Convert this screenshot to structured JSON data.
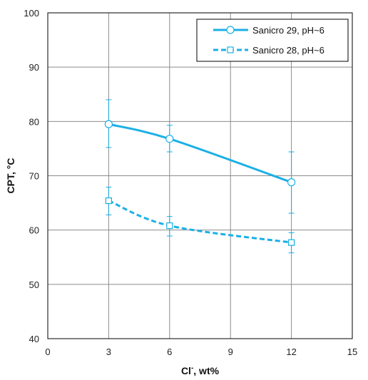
{
  "chart_data": {
    "type": "line",
    "title": "",
    "xlabel": "Cl⁻, wt%",
    "xlabel_main": "Cl",
    "xlabel_sup": "-",
    "xlabel_rest": ", wt%",
    "ylabel": "CPT, °C",
    "xlim": [
      0,
      15
    ],
    "ylim": [
      40,
      100
    ],
    "xticks": [
      0,
      3,
      6,
      9,
      12,
      15
    ],
    "yticks": [
      40,
      50,
      60,
      70,
      80,
      90,
      100
    ],
    "grid": true,
    "legend_position": "top-right",
    "series": [
      {
        "name": "Sanicro 29, pH~6",
        "color": "#1ab0e6",
        "line_style": "solid",
        "marker": "circle",
        "x": [
          3,
          6,
          12
        ],
        "y": [
          79.5,
          76.8,
          68.8
        ],
        "error_low": [
          75.2,
          74.4,
          63.1
        ],
        "error_high": [
          84.0,
          79.3,
          74.4
        ]
      },
      {
        "name": "Sanicro 28, pH~6",
        "color": "#1ab0e6",
        "line_style": "dashed",
        "marker": "square",
        "x": [
          3,
          6,
          12
        ],
        "y": [
          65.4,
          60.8,
          57.7
        ],
        "error_low": [
          62.8,
          58.9,
          55.8
        ],
        "error_high": [
          67.9,
          62.5,
          59.5
        ]
      }
    ]
  }
}
